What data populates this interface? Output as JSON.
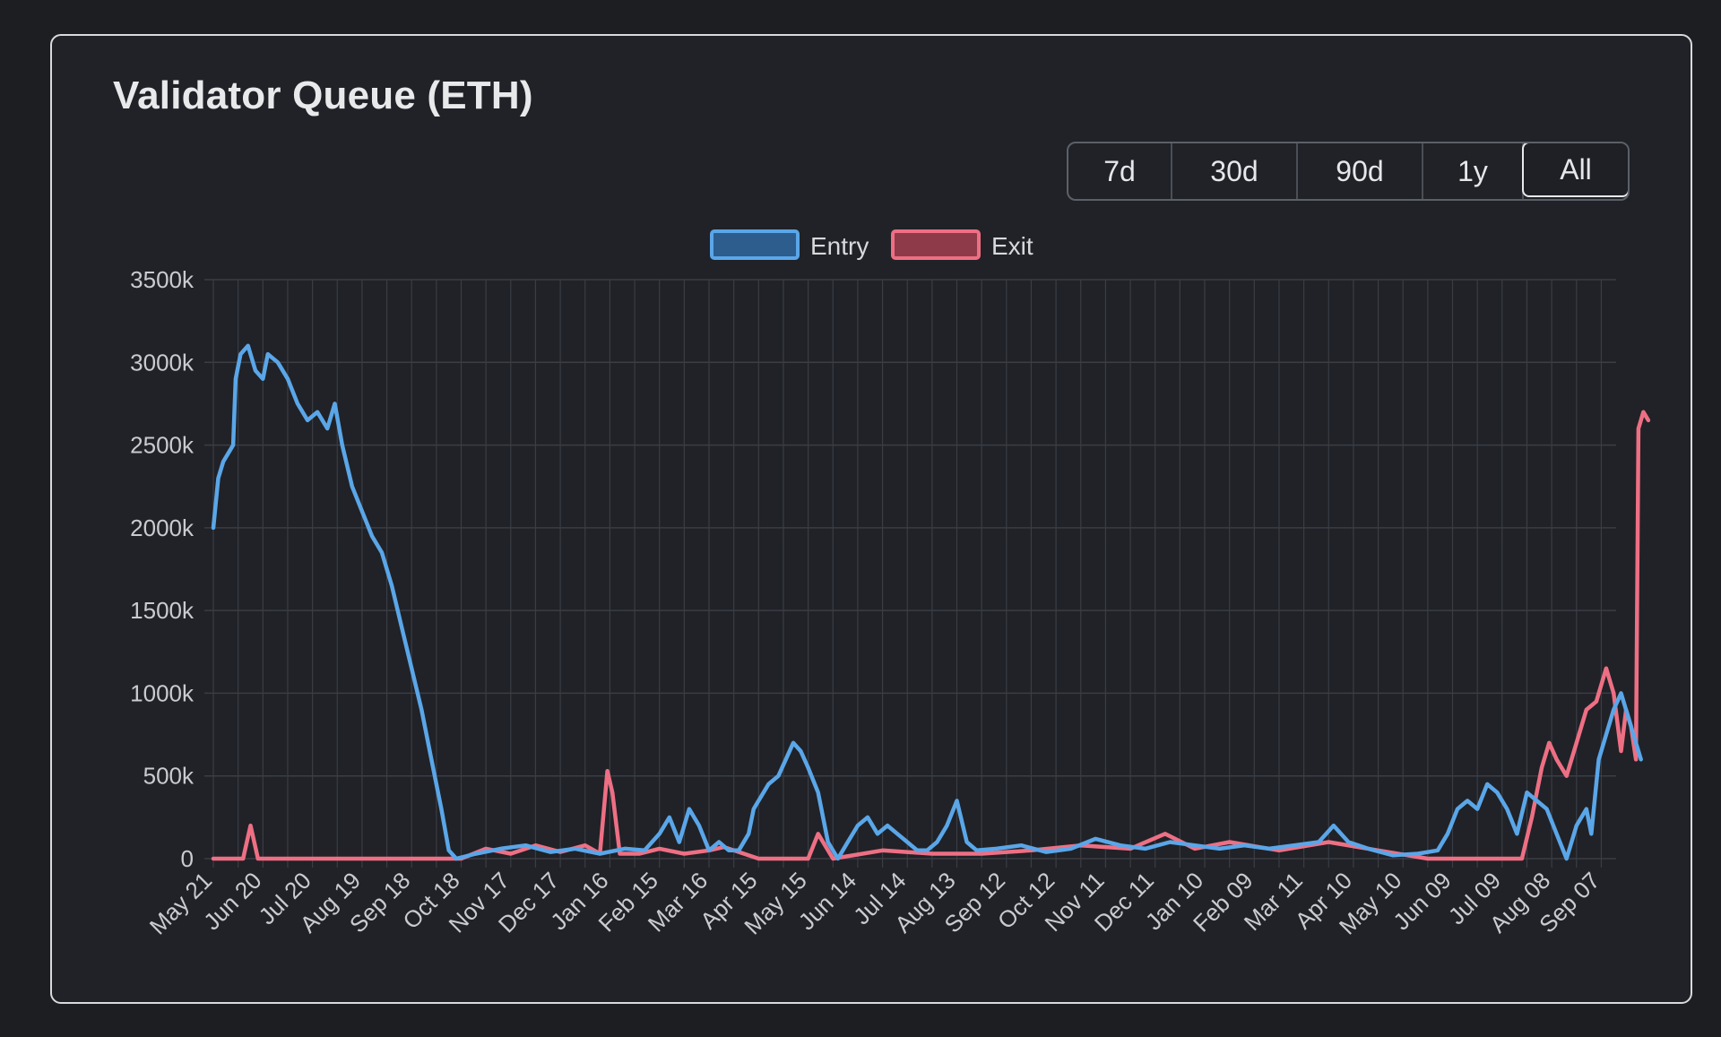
{
  "header": {
    "title": "Validator Queue (ETH)"
  },
  "range_selector": {
    "options": [
      "7d",
      "30d",
      "90d",
      "1y",
      "All"
    ],
    "selected": "All"
  },
  "colors": {
    "background": "#1c1e22",
    "card": "#202227",
    "grid": "#3a3d44",
    "entry": "#5aa6e8",
    "entry_fill": "#2c5d8d",
    "exit": "#ee6f84",
    "exit_fill": "#8e3a48"
  },
  "chart_data": {
    "type": "line",
    "title": "Validator Queue (ETH)",
    "legend": {
      "placement": "top-center",
      "entries": [
        "Entry",
        "Exit"
      ]
    },
    "grid": true,
    "ylim": [
      0,
      3500
    ],
    "yticks": [
      "0",
      "500k",
      "1000k",
      "1500k",
      "2000k",
      "2500k",
      "3000k",
      "3500k"
    ],
    "yunit": "k ETH",
    "categories": [
      "May 21",
      "Jun 20",
      "Jul 20",
      "Aug 19",
      "Sep 18",
      "Oct 18",
      "Nov 17",
      "Dec 17",
      "Jan 16",
      "Feb 15",
      "Mar 16",
      "Apr 15",
      "May 15",
      "Jun 14",
      "Jul 14",
      "Aug 13",
      "Sep 12",
      "Oct 12",
      "Nov 11",
      "Dec 11",
      "Jan 10",
      "Feb 09",
      "Mar 11",
      "Apr 10",
      "May 10",
      "Jun 09",
      "Jul 09",
      "Aug 08",
      "Sep 07"
    ],
    "xrange": [
      0,
      28.3
    ],
    "series": [
      {
        "name": "Entry",
        "points": [
          [
            0,
            2000
          ],
          [
            0.1,
            2300
          ],
          [
            0.2,
            2400
          ],
          [
            0.3,
            2450
          ],
          [
            0.4,
            2500
          ],
          [
            0.45,
            2900
          ],
          [
            0.55,
            3050
          ],
          [
            0.7,
            3100
          ],
          [
            0.85,
            2950
          ],
          [
            1.0,
            2900
          ],
          [
            1.1,
            3050
          ],
          [
            1.3,
            3000
          ],
          [
            1.5,
            2900
          ],
          [
            1.7,
            2750
          ],
          [
            1.9,
            2650
          ],
          [
            2.1,
            2700
          ],
          [
            2.3,
            2600
          ],
          [
            2.45,
            2750
          ],
          [
            2.6,
            2500
          ],
          [
            2.8,
            2250
          ],
          [
            3.0,
            2100
          ],
          [
            3.2,
            1950
          ],
          [
            3.4,
            1850
          ],
          [
            3.6,
            1650
          ],
          [
            3.8,
            1400
          ],
          [
            4.0,
            1150
          ],
          [
            4.2,
            900
          ],
          [
            4.4,
            600
          ],
          [
            4.6,
            300
          ],
          [
            4.75,
            50
          ],
          [
            4.9,
            0
          ],
          [
            5.3,
            30
          ],
          [
            5.8,
            60
          ],
          [
            6.3,
            80
          ],
          [
            6.8,
            40
          ],
          [
            7.3,
            60
          ],
          [
            7.8,
            30
          ],
          [
            8.3,
            60
          ],
          [
            8.7,
            50
          ],
          [
            9.0,
            150
          ],
          [
            9.2,
            250
          ],
          [
            9.4,
            100
          ],
          [
            9.6,
            300
          ],
          [
            9.8,
            200
          ],
          [
            10.0,
            50
          ],
          [
            10.2,
            100
          ],
          [
            10.4,
            50
          ],
          [
            10.6,
            50
          ],
          [
            10.8,
            150
          ],
          [
            10.9,
            300
          ],
          [
            11.0,
            350
          ],
          [
            11.2,
            450
          ],
          [
            11.4,
            500
          ],
          [
            11.55,
            600
          ],
          [
            11.7,
            700
          ],
          [
            11.85,
            650
          ],
          [
            12.0,
            550
          ],
          [
            12.2,
            400
          ],
          [
            12.4,
            100
          ],
          [
            12.6,
            0
          ],
          [
            12.8,
            100
          ],
          [
            13.0,
            200
          ],
          [
            13.2,
            250
          ],
          [
            13.4,
            150
          ],
          [
            13.6,
            200
          ],
          [
            13.8,
            150
          ],
          [
            14.0,
            100
          ],
          [
            14.2,
            50
          ],
          [
            14.4,
            50
          ],
          [
            14.6,
            100
          ],
          [
            14.8,
            200
          ],
          [
            15.0,
            350
          ],
          [
            15.2,
            100
          ],
          [
            15.4,
            50
          ],
          [
            15.8,
            60
          ],
          [
            16.3,
            80
          ],
          [
            16.8,
            40
          ],
          [
            17.3,
            60
          ],
          [
            17.8,
            120
          ],
          [
            18.3,
            80
          ],
          [
            18.8,
            60
          ],
          [
            19.3,
            100
          ],
          [
            19.8,
            80
          ],
          [
            20.3,
            60
          ],
          [
            20.8,
            80
          ],
          [
            21.3,
            60
          ],
          [
            21.8,
            80
          ],
          [
            22.3,
            100
          ],
          [
            22.6,
            200
          ],
          [
            22.9,
            100
          ],
          [
            23.3,
            60
          ],
          [
            23.8,
            20
          ],
          [
            24.3,
            30
          ],
          [
            24.7,
            50
          ],
          [
            24.9,
            150
          ],
          [
            25.1,
            300
          ],
          [
            25.3,
            350
          ],
          [
            25.5,
            300
          ],
          [
            25.7,
            450
          ],
          [
            25.9,
            400
          ],
          [
            26.1,
            300
          ],
          [
            26.3,
            150
          ],
          [
            26.5,
            400
          ],
          [
            26.7,
            350
          ],
          [
            26.9,
            300
          ],
          [
            27.1,
            150
          ],
          [
            27.3,
            0
          ],
          [
            27.5,
            200
          ],
          [
            27.7,
            300
          ],
          [
            27.8,
            150
          ],
          [
            27.95,
            600
          ],
          [
            28.1,
            750
          ],
          [
            28.25,
            900
          ],
          [
            28.4,
            1000
          ],
          [
            28.55,
            850
          ],
          [
            28.7,
            700
          ],
          [
            28.8,
            600
          ]
        ]
      },
      {
        "name": "Exit",
        "points": [
          [
            0,
            0
          ],
          [
            0.6,
            0
          ],
          [
            0.75,
            200
          ],
          [
            0.9,
            0
          ],
          [
            5.0,
            0
          ],
          [
            5.5,
            60
          ],
          [
            6.0,
            30
          ],
          [
            6.5,
            80
          ],
          [
            7.0,
            40
          ],
          [
            7.5,
            80
          ],
          [
            7.8,
            30
          ],
          [
            7.95,
            530
          ],
          [
            8.05,
            400
          ],
          [
            8.2,
            30
          ],
          [
            8.6,
            30
          ],
          [
            9.0,
            60
          ],
          [
            9.5,
            30
          ],
          [
            10.0,
            50
          ],
          [
            10.3,
            70
          ],
          [
            10.5,
            50
          ],
          [
            11.0,
            0
          ],
          [
            12.0,
            0
          ],
          [
            12.2,
            150
          ],
          [
            12.5,
            0
          ],
          [
            13.5,
            50
          ],
          [
            14.5,
            30
          ],
          [
            15.5,
            30
          ],
          [
            16.5,
            50
          ],
          [
            17.5,
            80
          ],
          [
            18.5,
            60
          ],
          [
            19.2,
            150
          ],
          [
            19.8,
            60
          ],
          [
            20.5,
            100
          ],
          [
            21.5,
            50
          ],
          [
            22.5,
            100
          ],
          [
            23.5,
            50
          ],
          [
            24.5,
            0
          ],
          [
            26.0,
            0
          ],
          [
            26.4,
            0
          ],
          [
            26.6,
            250
          ],
          [
            26.8,
            550
          ],
          [
            26.95,
            700
          ],
          [
            27.1,
            600
          ],
          [
            27.3,
            500
          ],
          [
            27.5,
            700
          ],
          [
            27.7,
            900
          ],
          [
            27.9,
            950
          ],
          [
            28.1,
            1150
          ],
          [
            28.25,
            1000
          ],
          [
            28.4,
            650
          ],
          [
            28.5,
            900
          ],
          [
            28.6,
            800
          ],
          [
            28.7,
            600
          ],
          [
            28.75,
            2600
          ],
          [
            28.85,
            2700
          ],
          [
            28.95,
            2650
          ]
        ]
      }
    ]
  }
}
